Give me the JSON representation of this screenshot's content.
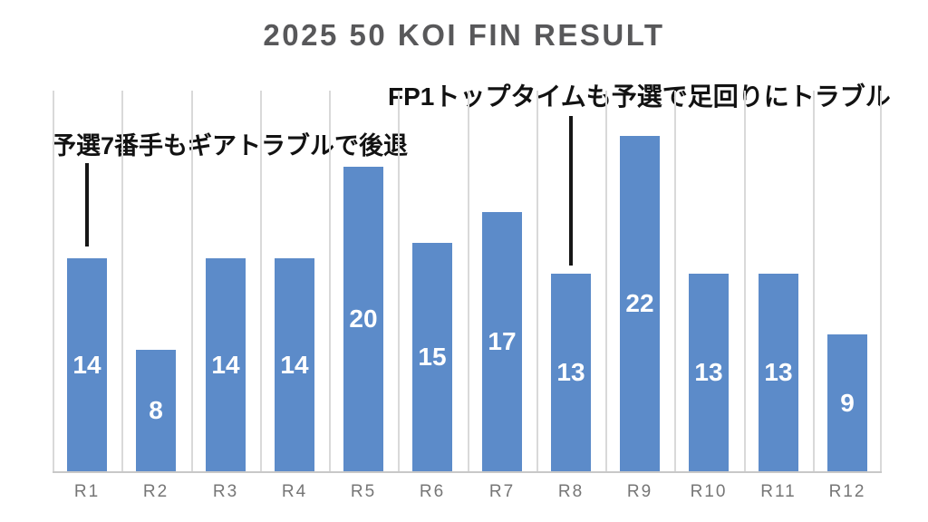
{
  "chart_data": {
    "type": "bar",
    "title": "2025 50 KOI FIN RESULT",
    "categories": [
      "R1",
      "R2",
      "R3",
      "R4",
      "R5",
      "R6",
      "R7",
      "R8",
      "R9",
      "R10",
      "R11",
      "R12"
    ],
    "values": [
      14,
      8,
      14,
      14,
      20,
      15,
      17,
      13,
      22,
      13,
      13,
      9
    ],
    "xlabel": "",
    "ylabel": "",
    "ylim": [
      0,
      25
    ],
    "grid": "vertical-category-gridlines",
    "legend": "none",
    "value_labels": "centered-inside-bars",
    "annotations": [
      {
        "text": "予選7番手もギアトラブルで後退",
        "target_category": "R1"
      },
      {
        "text": "FP1トップタイムも予選で足回りにトラブル",
        "target_category": "R8"
      }
    ],
    "colors": {
      "bar": "#5c8bc9",
      "bar_value_label": "#ffffff",
      "title": "#58585a",
      "axis_label": "#767676",
      "gridline": "#d9d9d9",
      "axis_line": "#c8c8c8",
      "annotation_text": "#121212",
      "annotation_line": "#161616",
      "background": "#ffffff"
    }
  }
}
